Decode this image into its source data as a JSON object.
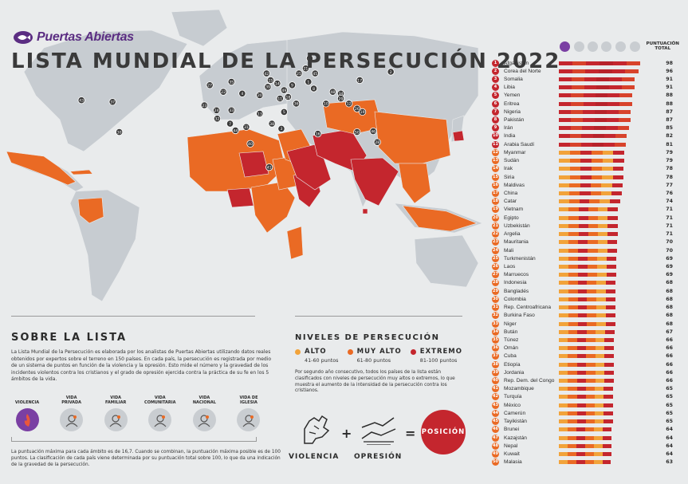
{
  "brand": {
    "name": "Puertas Abiertas"
  },
  "title": "LISTA MUNDIAL DE LA PERSECUCIÓN 2022",
  "colors": {
    "extremo": "#c4262e",
    "muy_alto": "#ea6a24",
    "alto": "#f2a33a",
    "land": "#c7ccd1",
    "purple": "#7a3fa3",
    "sea": "#e9ebec"
  },
  "sobre": {
    "title": "SOBRE LA LISTA",
    "text": "La Lista Mundial de la Persecución es elaborada por los analistas de Puertas Abiertas utilizando datos reales obtenidos por expertos sobre el terreno en 150 países. En cada país, la persecución es registrada por medio de un sistema de puntos en función de la violencia y la opresión. Esto mide el número y la gravedad de los incidentes violentos contra los cristianos y el grado de opresión ejercida contra la práctica de su fe en los 5 ámbitos de la vida.",
    "icons": [
      {
        "label": "VIOLENCIA",
        "icon": "violence-icon"
      },
      {
        "label": "VIDA\nPRIVADA",
        "icon": "private-life-icon"
      },
      {
        "label": "VIDA\nFAMILIAR",
        "icon": "family-life-icon"
      },
      {
        "label": "VIDA\nCOMUNITARIA",
        "icon": "community-life-icon"
      },
      {
        "label": "VIDA\nNACIONAL",
        "icon": "national-life-icon"
      },
      {
        "label": "VIDA DE\nIGLESIA",
        "icon": "church-life-icon"
      }
    ],
    "footnote": "La puntuación máxima para cada ámbito es de 16,7. Cuando se combinan, la puntuación máxima posible es de 100 puntos. La clasificación de cada país viene determinada por su puntuación total sobre 100, lo que da una indicación de la gravedad de la persecución."
  },
  "niveles": {
    "title": "NIVELES DE PERSECUCIÓN",
    "items": [
      {
        "label": "ALTO",
        "range": "41-60 puntos",
        "color": "#f2a33a"
      },
      {
        "label": "MUY ALTO",
        "range": "61-80 puntos",
        "color": "#ea6a24"
      },
      {
        "label": "EXTREMO",
        "range": "81-100 puntos",
        "color": "#c4262e"
      }
    ],
    "text": "Por segundo año consecutivo, todos los países de la lista están clasificados con niveles de persecución muy altos o extremos, lo que muestra el aumento de la intensidad de la persecución contra los cristianos."
  },
  "formula": {
    "a": "VIOLENCIA",
    "b": "OPRESIÓN",
    "plus": "+",
    "equals": "=",
    "result": "POSICIÓN"
  },
  "ranking_header": {
    "total": "PUNTUACIÓN\nTOTAL"
  },
  "chart_data": {
    "type": "bar",
    "title": "LISTA MUNDIAL DE LA PERSECUCIÓN 2022",
    "ylabel": "PUNTUACIÓN TOTAL",
    "ylim": [
      0,
      100
    ],
    "categories": [
      "Afganistán",
      "Corea del Norte",
      "Somalia",
      "Libia",
      "Yemen",
      "Eritrea",
      "Nigeria",
      "Pakistán",
      "Irán",
      "India",
      "Arabia Saudí",
      "Myanmar",
      "Sudán",
      "Irak",
      "Siria",
      "Maldivas",
      "China",
      "Catar",
      "Vietnam",
      "Egipto",
      "Uzbekistán",
      "Argelia",
      "Mauritania",
      "Mali",
      "Turkmenistán",
      "Laos",
      "Marruecos",
      "Indonesia",
      "Bangladés",
      "Colombia",
      "Rep. Centroafricana",
      "Burkina Faso",
      "Niger",
      "Bután",
      "Túnez",
      "Omán",
      "Cuba",
      "Etiopía",
      "Jordania",
      "Rep. Dem. del Congo",
      "Mozambique",
      "Turquía",
      "México",
      "Camerún",
      "Tayikistán",
      "Brunei",
      "Kazajstán",
      "Nepal",
      "Kuwait",
      "Malasia"
    ],
    "values": [
      98,
      96,
      91,
      91,
      88,
      88,
      87,
      87,
      85,
      82,
      81,
      79,
      79,
      78,
      78,
      77,
      76,
      74,
      71,
      71,
      71,
      71,
      70,
      70,
      69,
      69,
      69,
      68,
      68,
      68,
      68,
      68,
      68,
      67,
      66,
      66,
      66,
      66,
      66,
      66,
      65,
      65,
      65,
      65,
      65,
      64,
      64,
      64,
      64,
      63
    ]
  },
  "map_markers": [
    {
      "n": "43",
      "lon": -102,
      "lat": 23
    },
    {
      "n": "37",
      "lon": -79,
      "lat": 22
    },
    {
      "n": "30",
      "lon": -74,
      "lat": 4
    },
    {
      "n": "27",
      "lon": -7,
      "lat": 32
    },
    {
      "n": "22",
      "lon": 3,
      "lat": 28
    },
    {
      "n": "23",
      "lon": -11,
      "lat": 20
    },
    {
      "n": "24",
      "lon": -2,
      "lat": 17
    },
    {
      "n": "32",
      "lon": -1.5,
      "lat": 12
    },
    {
      "n": "33",
      "lon": 9,
      "lat": 17
    },
    {
      "n": "7",
      "lon": 8,
      "lat": 9
    },
    {
      "n": "4",
      "lon": 17,
      "lat": 27
    },
    {
      "n": "35",
      "lon": 9,
      "lat": 34
    },
    {
      "n": "20",
      "lon": 30,
      "lat": 26
    },
    {
      "n": "13",
      "lon": 30,
      "lat": 15
    },
    {
      "n": "31",
      "lon": 20,
      "lat": 7
    },
    {
      "n": "38",
      "lon": 39,
      "lat": 9
    },
    {
      "n": "3",
      "lon": 46,
      "lat": 6
    },
    {
      "n": "40",
      "lon": 23,
      "lat": -3
    },
    {
      "n": "41",
      "lon": 37,
      "lat": -17
    },
    {
      "n": "44",
      "lon": 12,
      "lat": 5
    },
    {
      "n": "42",
      "lon": 35,
      "lat": 39
    },
    {
      "n": "15",
      "lon": 38,
      "lat": 35
    },
    {
      "n": "14",
      "lon": 43,
      "lat": 33
    },
    {
      "n": "39",
      "lon": 36,
      "lat": 31
    },
    {
      "n": "11",
      "lon": 45,
      "lat": 24
    },
    {
      "n": "18",
      "lon": 51,
      "lat": 25
    },
    {
      "n": "49",
      "lon": 48,
      "lat": 29
    },
    {
      "n": "5",
      "lon": 48,
      "lat": 16
    },
    {
      "n": "36",
      "lon": 57,
      "lat": 21
    },
    {
      "n": "9",
      "lon": 54,
      "lat": 32
    },
    {
      "n": "25",
      "lon": 59,
      "lat": 39
    },
    {
      "n": "21",
      "lon": 64,
      "lat": 42
    },
    {
      "n": "45",
      "lon": 71,
      "lat": 39
    },
    {
      "n": "47",
      "lon": 67,
      "lat": 48
    },
    {
      "n": "1",
      "lon": 66,
      "lat": 34
    },
    {
      "n": "8",
      "lon": 70,
      "lat": 30
    },
    {
      "n": "10",
      "lon": 79,
      "lat": 21
    },
    {
      "n": "48",
      "lon": 84,
      "lat": 28
    },
    {
      "n": "34",
      "lon": 90,
      "lat": 27
    },
    {
      "n": "29",
      "lon": 90,
      "lat": 24
    },
    {
      "n": "17",
      "lon": 104,
      "lat": 35
    },
    {
      "n": "2",
      "lon": 127,
      "lat": 40
    },
    {
      "n": "12",
      "lon": 96,
      "lat": 21
    },
    {
      "n": "26",
      "lon": 102,
      "lat": 18
    },
    {
      "n": "19",
      "lon": 106,
      "lat": 16
    },
    {
      "n": "46",
      "lon": 114,
      "lat": 4.5
    },
    {
      "n": "50",
      "lon": 102,
      "lat": 4
    },
    {
      "n": "28",
      "lon": 117,
      "lat": -2
    },
    {
      "n": "16",
      "lon": 73,
      "lat": 3
    }
  ]
}
